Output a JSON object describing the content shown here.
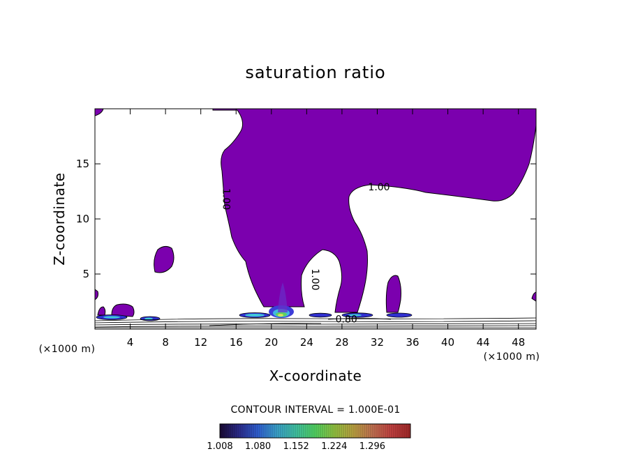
{
  "chart_data": {
    "type": "contour",
    "title": "saturation ratio",
    "xlabel": "X-coordinate",
    "ylabel": "Z-coordinate",
    "x_unit": "(×1000 m)",
    "y_unit": "(×1000 m)",
    "xlim": [
      0,
      50
    ],
    "ylim": [
      0,
      20
    ],
    "x_ticks": [
      4,
      8,
      12,
      16,
      20,
      24,
      28,
      32,
      36,
      40,
      44,
      48
    ],
    "y_ticks": [
      5,
      10,
      15
    ],
    "contour_labels": [
      {
        "text": "1.00",
        "x": 32.2,
        "y": 12.6,
        "rotate": false
      },
      {
        "text": "1.00",
        "x": 14.5,
        "y": 11.8,
        "rotate": true
      },
      {
        "text": "1.00",
        "x": 24.6,
        "y": 4.5,
        "rotate": true
      },
      {
        "text": "0.80",
        "x": 28.5,
        "y": 0.6,
        "rotate": false
      }
    ],
    "contour_interval_text": "CONTOUR INTERVAL = 1.000E-01",
    "colorbar": {
      "ticks": [
        "1.008",
        "1.080",
        "1.152",
        "1.224",
        "1.296"
      ],
      "colors": [
        "#1a0a33",
        "#2a2a8a",
        "#2f5fd0",
        "#3aa0c8",
        "#40c0a0",
        "#50d060",
        "#90c040",
        "#b8a040",
        "#c07050",
        "#c04040",
        "#a02828"
      ]
    },
    "fill_color": "#7b00ae",
    "fill_threshold": 1.0,
    "grid": false
  }
}
